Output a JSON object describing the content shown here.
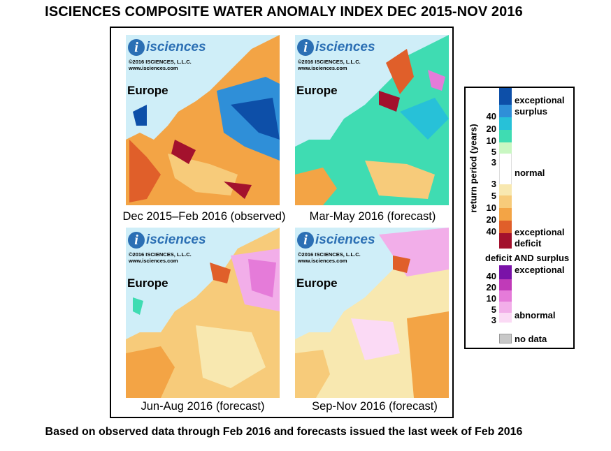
{
  "title": "ISCIENCES COMPOSITE WATER ANOMALY INDEX DEC 2015-NOV 2016",
  "footnote": "Based on observed data through Feb 2016 and forecasts issued the last week of Feb 2016",
  "panels": [
    {
      "caption": "Dec 2015–Feb 2016 (observed)",
      "region": "Europe",
      "logo": "isciences",
      "copyright": "©2016  ISCIENCES, L.L.C.",
      "website": "www.isciences.com"
    },
    {
      "caption": "Mar-May 2016 (forecast)",
      "region": "Europe",
      "logo": "isciences",
      "copyright": "©2016  ISCIENCES, L.L.C.",
      "website": "www.isciences.com"
    },
    {
      "caption": "Jun-Aug 2016 (forecast)",
      "region": "Europe",
      "logo": "isciences",
      "copyright": "©2016  ISCIENCES, L.L.C.",
      "website": "www.isciences.com"
    },
    {
      "caption": "Sep-Nov 2016 (forecast)",
      "region": "Europe",
      "logo": "isciences",
      "copyright": "©2016  ISCIENCES, L.L.C.",
      "website": "www.isciences.com"
    }
  ],
  "legend": {
    "axis_label": "return period (years)",
    "surplus_label_1": "exceptional",
    "surplus_label_2": "surplus",
    "surplus_ticks": [
      "40",
      "20",
      "10",
      "5",
      "3"
    ],
    "normal_label": "normal",
    "deficit_ticks": [
      "3",
      "5",
      "10",
      "20",
      "40"
    ],
    "deficit_label_1": "exceptional",
    "deficit_label_2": "deficit",
    "both_title": "deficit AND surplus",
    "both_label_top": "exceptional",
    "both_ticks": [
      "40",
      "20",
      "10",
      "5",
      "3"
    ],
    "both_label_bottom": "abnormal",
    "nodata_label": "no data",
    "colors": {
      "surplus": [
        "#0d4fa8",
        "#2f8fd8",
        "#27c1d8",
        "#3fdcb2",
        "#c9f7c2"
      ],
      "normal": "#ffffff",
      "deficit": [
        "#f8e8b0",
        "#f7cb7a",
        "#f3a445",
        "#e05f2a",
        "#a3112d"
      ],
      "both": [
        "#7a12a8",
        "#c03ab8",
        "#e57bd9",
        "#f2aee9",
        "#fbdaf5"
      ],
      "nodata": "#c8c8c8",
      "ocean": "#cfeef8"
    }
  }
}
